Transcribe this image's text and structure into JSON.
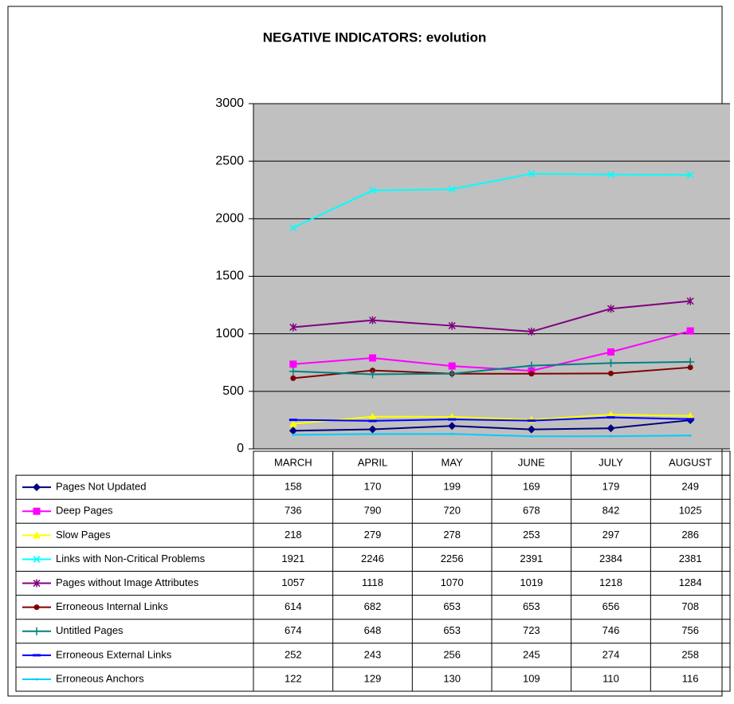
{
  "chart_data": {
    "type": "line",
    "title": "NEGATIVE INDICATORS: evolution",
    "categories": [
      "MARCH",
      "APRIL",
      "MAY",
      "JUNE",
      "JULY",
      "AUGUST"
    ],
    "ylim": [
      0,
      3000
    ],
    "yticks": [
      0,
      500,
      1000,
      1500,
      2000,
      2500,
      3000
    ],
    "grid": true,
    "series": [
      {
        "name": "Pages Not Updated",
        "color": "#000080",
        "values": [
          158,
          170,
          199,
          169,
          179,
          249
        ]
      },
      {
        "name": "Deep Pages",
        "color": "#ff00ff",
        "values": [
          736,
          790,
          720,
          678,
          842,
          1025
        ]
      },
      {
        "name": "Slow Pages",
        "color": "#ffff00",
        "values": [
          218,
          279,
          278,
          253,
          297,
          286
        ]
      },
      {
        "name": "Links with Non-Critical Problems",
        "color": "#00ffff",
        "values": [
          1921,
          2246,
          2256,
          2391,
          2384,
          2381
        ]
      },
      {
        "name": "Pages without Image Attributes",
        "color": "#800080",
        "values": [
          1057,
          1118,
          1070,
          1019,
          1218,
          1284
        ]
      },
      {
        "name": "Erroneous Internal Links",
        "color": "#800000",
        "values": [
          614,
          682,
          653,
          653,
          656,
          708
        ]
      },
      {
        "name": "Untitled Pages",
        "color": "#008080",
        "values": [
          674,
          648,
          653,
          723,
          746,
          756
        ]
      },
      {
        "name": "Erroneous External Links",
        "color": "#0000ff",
        "values": [
          252,
          243,
          256,
          245,
          274,
          258
        ]
      },
      {
        "name": "Erroneous Anchors",
        "color": "#00ccff",
        "values": [
          122,
          129,
          130,
          109,
          110,
          116
        ]
      }
    ]
  }
}
